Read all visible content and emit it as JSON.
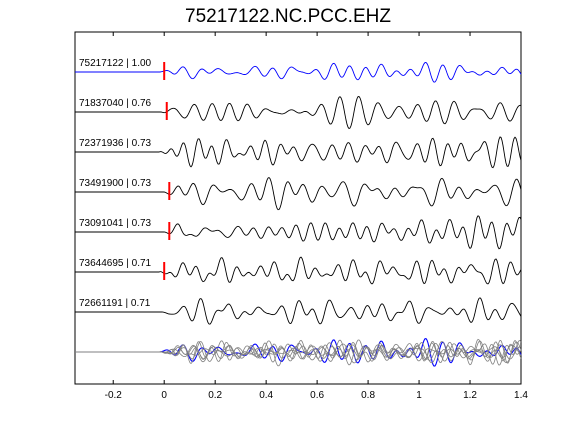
{
  "chart_data": {
    "type": "line",
    "title": "75217122.NC.PCC.EHZ",
    "xlabel": "",
    "ylabel": "",
    "xlim": [
      -0.35,
      1.4
    ],
    "x_ticks": [
      "-0.2",
      "0",
      "0.2",
      "0.4",
      "0.6",
      "0.8",
      "1",
      "1.2",
      "1.4"
    ],
    "x_tick_values": [
      -0.2,
      0,
      0.2,
      0.4,
      0.6,
      0.8,
      1.0,
      1.2,
      1.4
    ],
    "grid": false,
    "reference_color": "#0000ff",
    "trace_color": "#000000",
    "pick_color": "#ff0000",
    "stack_trace_color": "#808080",
    "traces": [
      {
        "label": "75217122 | 1.00",
        "pick_time": 0.0,
        "seed": 1,
        "reference": true
      },
      {
        "label": "71837040 | 0.76",
        "pick_time": 0.01,
        "seed": 2,
        "reference": false
      },
      {
        "label": "72371936 | 0.73",
        "pick_time": null,
        "seed": 3,
        "reference": false
      },
      {
        "label": "73491900 | 0.73",
        "pick_time": 0.02,
        "seed": 4,
        "reference": false
      },
      {
        "label": "73091041 | 0.73",
        "pick_time": 0.02,
        "seed": 5,
        "reference": false
      },
      {
        "label": "73644695 | 0.71",
        "pick_time": 0.0,
        "seed": 6,
        "reference": false
      },
      {
        "label": "72661191 | 0.71",
        "pick_time": null,
        "seed": 7,
        "reference": false
      }
    ],
    "overlay": {
      "description_visible": false,
      "includes_reference": true
    }
  }
}
